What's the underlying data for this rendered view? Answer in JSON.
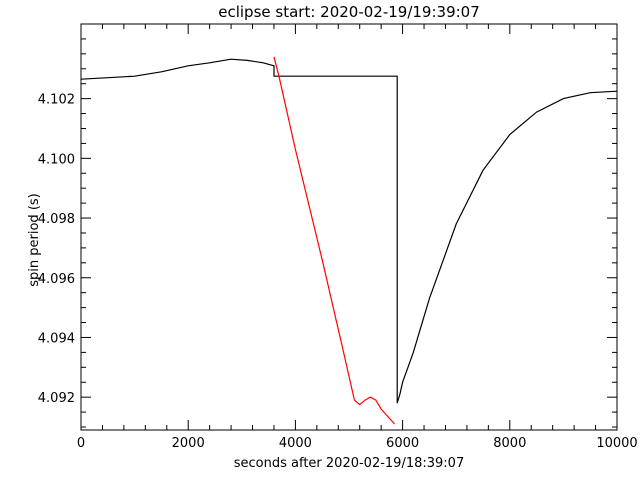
{
  "chart_data": {
    "type": "line",
    "title": "eclipse start: 2020-02-19/19:39:07",
    "xlabel": "seconds after 2020-02-19/18:39:07",
    "ylabel": "spin period (s)",
    "xlim": [
      0,
      10000
    ],
    "ylim": [
      4.0909,
      4.1045
    ],
    "x_ticks": [
      0,
      2000,
      4000,
      6000,
      8000,
      10000
    ],
    "x_tick_labels": [
      "0",
      "2000",
      "4000",
      "6000",
      "8000",
      "10000"
    ],
    "y_ticks": [
      4.092,
      4.094,
      4.096,
      4.098,
      4.1,
      4.102
    ],
    "y_tick_labels": [
      "4.092",
      "4.094",
      "4.096",
      "4.098",
      "4.100",
      "4.102"
    ],
    "grid": false,
    "colors": {
      "black_series": "#000000",
      "red_series": "#ff0000"
    },
    "series": [
      {
        "color": "#000000",
        "x": [
          0,
          500,
          1000,
          1500,
          2000,
          2400,
          2800,
          3100,
          3400,
          3600,
          3600,
          5900,
          5900,
          5950,
          6000,
          6200,
          6500,
          7000,
          7500,
          8000,
          8500,
          9000,
          9500,
          10000
        ],
        "y": [
          4.10265,
          4.1027,
          4.10275,
          4.1029,
          4.1031,
          4.1032,
          4.10332,
          4.10328,
          4.1032,
          4.1031,
          4.10275,
          4.10275,
          4.0918,
          4.0921,
          4.0925,
          4.0935,
          4.0953,
          4.0978,
          4.0996,
          4.1008,
          4.10155,
          4.102,
          4.1022,
          4.10225
        ]
      },
      {
        "color": "#ff0000",
        "x": [
          3600,
          3700,
          4000,
          4500,
          4900,
          5100,
          5200,
          5300,
          5400,
          5500,
          5600,
          5700,
          5800,
          5850
        ],
        "y": [
          4.1034,
          4.1027,
          4.1003,
          4.0966,
          4.0935,
          4.0919,
          4.09175,
          4.0919,
          4.092,
          4.0919,
          4.0916,
          4.0914,
          4.0912,
          4.0911
        ]
      }
    ]
  }
}
